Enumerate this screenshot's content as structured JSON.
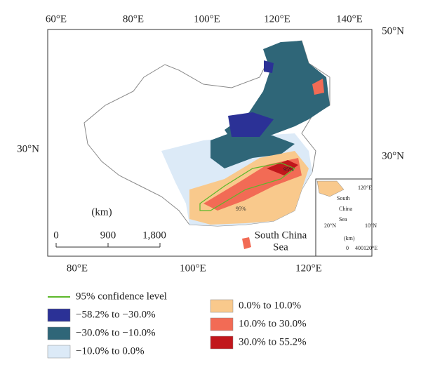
{
  "map": {
    "top_labels": [
      "60°E",
      "80°E",
      "100°E",
      "120°E",
      "140°E"
    ],
    "bottom_labels": [
      "80°E",
      "100°E",
      "120°E"
    ],
    "left_labels": [
      "30°N"
    ],
    "right_labels": [
      "50°N",
      "30°N"
    ],
    "scale": {
      "unit": "(km)",
      "ticks": [
        "0",
        "900",
        "1,800"
      ]
    },
    "sea_label": [
      "South China",
      "Sea"
    ],
    "annotations": [
      "95%",
      "95%"
    ],
    "inset": {
      "labels": [
        "120°E",
        "South",
        "China",
        "Sea",
        "(km)",
        "0",
        "400",
        "120°E",
        "20°N",
        "10°N"
      ]
    }
  },
  "legend": [
    {
      "label": "95% confidence level",
      "color": "#5cb82a",
      "kind": "line"
    },
    {
      "label": "−58.2% to −30.0%",
      "color": "#2b3196",
      "kind": "swatch"
    },
    {
      "label": "−30.0% to −10.0%",
      "color": "#2f6678",
      "kind": "swatch"
    },
    {
      "label": "−10.0% to 0.0%",
      "color": "#dceaf7",
      "kind": "swatch"
    },
    {
      "label": "0.0% to 10.0%",
      "color": "#f9c98c",
      "kind": "swatch"
    },
    {
      "label": "10.0% to 30.0%",
      "color": "#f26b55",
      "kind": "swatch"
    },
    {
      "label": "30.0% to 55.2%",
      "color": "#c1171c",
      "kind": "swatch"
    }
  ]
}
